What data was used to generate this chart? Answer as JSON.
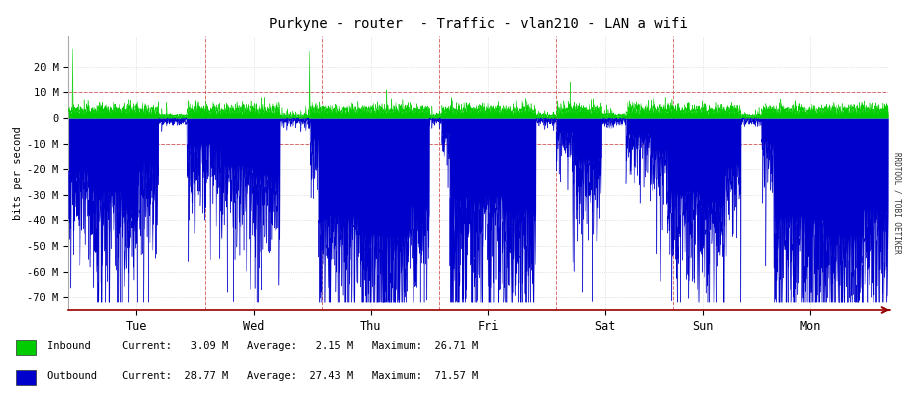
{
  "title": "Purkyne - router  - Traffic - vlan210 - LAN a wifi",
  "ylabel": "bits per second",
  "background_color": "#ffffff",
  "plot_bg_color": "#ffffff",
  "grid_color": "#cccccc",
  "grid_minor_color": "#dddddd",
  "inbound_color": "#00cc00",
  "outbound_color": "#0000cc",
  "yticks": [
    20,
    10,
    0,
    -10,
    -20,
    -30,
    -40,
    -50,
    -60,
    -70
  ],
  "ytick_labels": [
    "20 M",
    "10 M",
    "0",
    "-10 M",
    "-20 M",
    "-30 M",
    "-40 M",
    "-50 M",
    "-60 M",
    "-70 M"
  ],
  "ylim": [
    -75,
    32
  ],
  "xlim": [
    0,
    1
  ],
  "x_day_labels": [
    "Tue",
    "Wed",
    "Thu",
    "Fri",
    "Sat",
    "Sun",
    "Mon"
  ],
  "x_day_positions": [
    0.083,
    0.226,
    0.369,
    0.512,
    0.655,
    0.774,
    0.905
  ],
  "vline_positions": [
    0.167,
    0.31,
    0.452,
    0.595,
    0.738
  ],
  "red_dashed_yticks": [
    10,
    -10
  ],
  "side_label": "RRDTOOL / TOBI OETIKER",
  "inbound_label": "Inbound",
  "outbound_label": "Outbound",
  "current_in": "3.09 M",
  "average_in": "2.15 M",
  "maximum_in": "26.71 M",
  "current_out": "28.77 M",
  "average_out": "27.43 M",
  "maximum_out": "71.57 M"
}
